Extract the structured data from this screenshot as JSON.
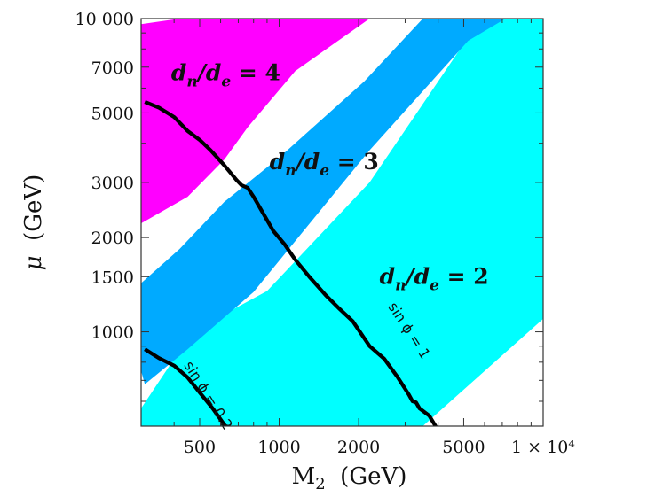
{
  "chart_data": {
    "type": "contour",
    "xlabel": "M",
    "xlabel_sub": "2",
    "xlabel_unit": "(GeV)",
    "ylabel": "μ",
    "ylabel_unit": "(GeV)",
    "xscale": "log",
    "yscale": "log",
    "xlim": [
      300,
      10000
    ],
    "ylim": [
      500,
      10000
    ],
    "x_ticks": [
      {
        "value": 500,
        "label": "500"
      },
      {
        "value": 1000,
        "label": "1000"
      },
      {
        "value": 2000,
        "label": "2000"
      },
      {
        "value": 5000,
        "label": "5000"
      },
      {
        "value": 10000,
        "label": "1 × 10⁴"
      }
    ],
    "y_ticks": [
      {
        "value": 1000,
        "label": "1000"
      },
      {
        "value": 1500,
        "label": "1500"
      },
      {
        "value": 2000,
        "label": "2000"
      },
      {
        "value": 3000,
        "label": "3000"
      },
      {
        "value": 5000,
        "label": "5000"
      },
      {
        "value": 7000,
        "label": "7000"
      },
      {
        "value": 10000,
        "label": "10 000"
      }
    ],
    "grid": false,
    "regions": [
      {
        "name": "dn/de = 2",
        "label_main": "d",
        "label_sub1": "n",
        "label_mid": "/d",
        "label_sub2": "e",
        "label_tail": " = 2",
        "color": "#00FFFF",
        "label_pos": [
          2400,
          1420
        ],
        "polygon": [
          [
            300,
            500
          ],
          [
            300,
            570
          ],
          [
            470,
            1005
          ],
          [
            900,
            1350
          ],
          [
            2200,
            3000
          ],
          [
            4800,
            7900
          ],
          [
            5900,
            10000
          ],
          [
            10000,
            10000
          ],
          [
            10000,
            1100
          ],
          [
            3500,
            500
          ]
        ]
      },
      {
        "name": "dn/de = 3",
        "label_main": "d",
        "label_sub1": "n",
        "label_mid": "/d",
        "label_sub2": "e",
        "label_tail": " = 3",
        "color": "#00AAFF",
        "label_pos": [
          920,
          3300
        ],
        "polygon": [
          [
            300,
            750
          ],
          [
            300,
            1430
          ],
          [
            420,
            1840
          ],
          [
            620,
            2600
          ],
          [
            1000,
            3600
          ],
          [
            2100,
            6300
          ],
          [
            3500,
            10000
          ],
          [
            7200,
            10000
          ],
          [
            5200,
            8500
          ],
          [
            2200,
            3800
          ],
          [
            800,
            1340
          ],
          [
            450,
            880
          ],
          [
            310,
            680
          ]
        ]
      },
      {
        "name": "dn/de = 4",
        "label_main": "d",
        "label_sub1": "n",
        "label_mid": "/d",
        "label_sub2": "e",
        "label_tail": " = 4",
        "color": "#FF00FF",
        "label_pos": [
          390,
          6350
        ],
        "polygon": [
          [
            300,
            2220
          ],
          [
            300,
            9600
          ],
          [
            420,
            10000
          ],
          [
            2200,
            10000
          ],
          [
            1150,
            6800
          ],
          [
            760,
            4500
          ],
          [
            620,
            3550
          ],
          [
            450,
            2700
          ]
        ]
      }
    ],
    "curves": [
      {
        "name": "sin ϕ = 1",
        "label": "sin ϕ = 1",
        "label_pos": [
          3000,
          990
        ],
        "label_angle": 57,
        "points": [
          [
            310,
            5420
          ],
          [
            350,
            5200
          ],
          [
            400,
            4850
          ],
          [
            450,
            4380
          ],
          [
            500,
            4100
          ],
          [
            550,
            3800
          ],
          [
            620,
            3400
          ],
          [
            690,
            3050
          ],
          [
            720,
            2940
          ],
          [
            760,
            2880
          ],
          [
            800,
            2700
          ],
          [
            880,
            2350
          ],
          [
            950,
            2100
          ],
          [
            1050,
            1900
          ],
          [
            1150,
            1700
          ],
          [
            1300,
            1500
          ],
          [
            1500,
            1310
          ],
          [
            1700,
            1180
          ],
          [
            1900,
            1080
          ],
          [
            2200,
            900
          ],
          [
            2500,
            820
          ],
          [
            2800,
            720
          ],
          [
            3100,
            630
          ],
          [
            3200,
            600
          ],
          [
            3300,
            595
          ],
          [
            3400,
            570
          ],
          [
            3700,
            540
          ],
          [
            4000,
            485
          ],
          [
            4300,
            450
          ]
        ]
      },
      {
        "name": "sin ϕ = 0.2",
        "label": "sin ϕ = 0.2",
        "label_pos": [
          520,
          615
        ],
        "label_angle": 58,
        "points": [
          [
            310,
            880
          ],
          [
            350,
            825
          ],
          [
            400,
            780
          ],
          [
            450,
            715
          ],
          [
            500,
            640
          ],
          [
            560,
            570
          ],
          [
            620,
            505
          ],
          [
            700,
            455
          ]
        ]
      }
    ]
  }
}
